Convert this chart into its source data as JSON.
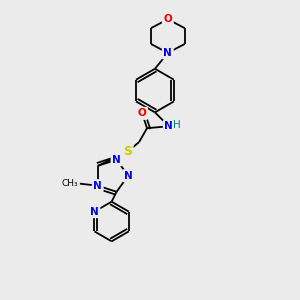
{
  "bg_color": "#ebebeb",
  "atom_colors": {
    "C": "#000000",
    "N": "#0000ee",
    "O": "#ee0000",
    "S": "#cccc00",
    "H": "#008080"
  },
  "bond_color": "#000000",
  "font_size": 7.5,
  "fig_size": [
    3.0,
    3.0
  ],
  "dpi": 100
}
